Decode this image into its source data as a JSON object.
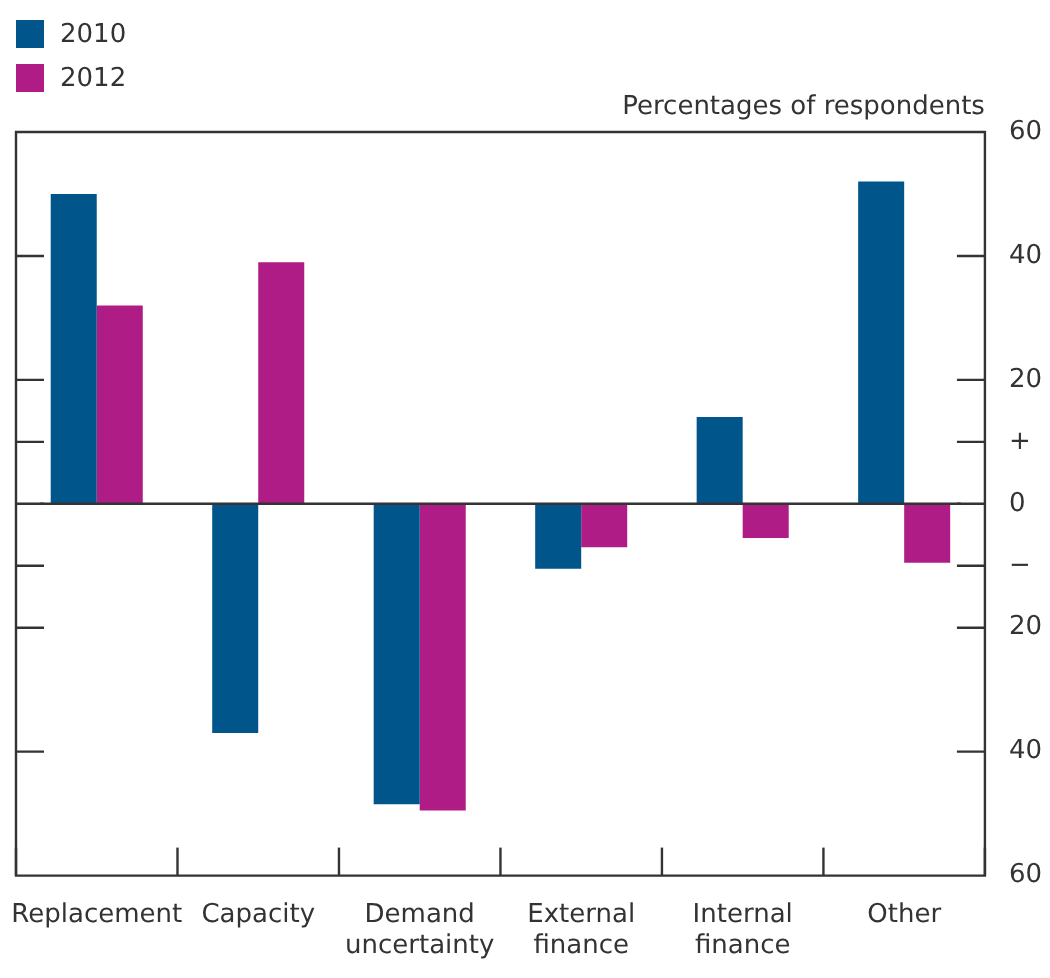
{
  "chart_data": {
    "type": "bar",
    "ylabel": "Percentages of respondents",
    "categories": [
      "Replacement",
      "Capacity",
      "Demand uncertainty",
      "External finance",
      "Internal finance",
      "Other"
    ],
    "series": [
      {
        "name": "2010",
        "color": "#00558b",
        "values": [
          50,
          -37,
          -48.5,
          -10.5,
          14,
          52
        ]
      },
      {
        "name": "2012",
        "color": "#b01c85",
        "values": [
          32,
          39,
          -49.5,
          -7,
          -5.5,
          -9.5
        ]
      }
    ],
    "ylim": [
      -60,
      60
    ],
    "yticks": [
      {
        "value": -60,
        "label": "60"
      },
      {
        "value": -40,
        "label": "40"
      },
      {
        "value": -20,
        "label": "20"
      },
      {
        "value": -10,
        "label": "−"
      },
      0,
      {
        "value": 10,
        "label": "+"
      },
      20,
      40,
      60
    ],
    "legend": "top left"
  }
}
